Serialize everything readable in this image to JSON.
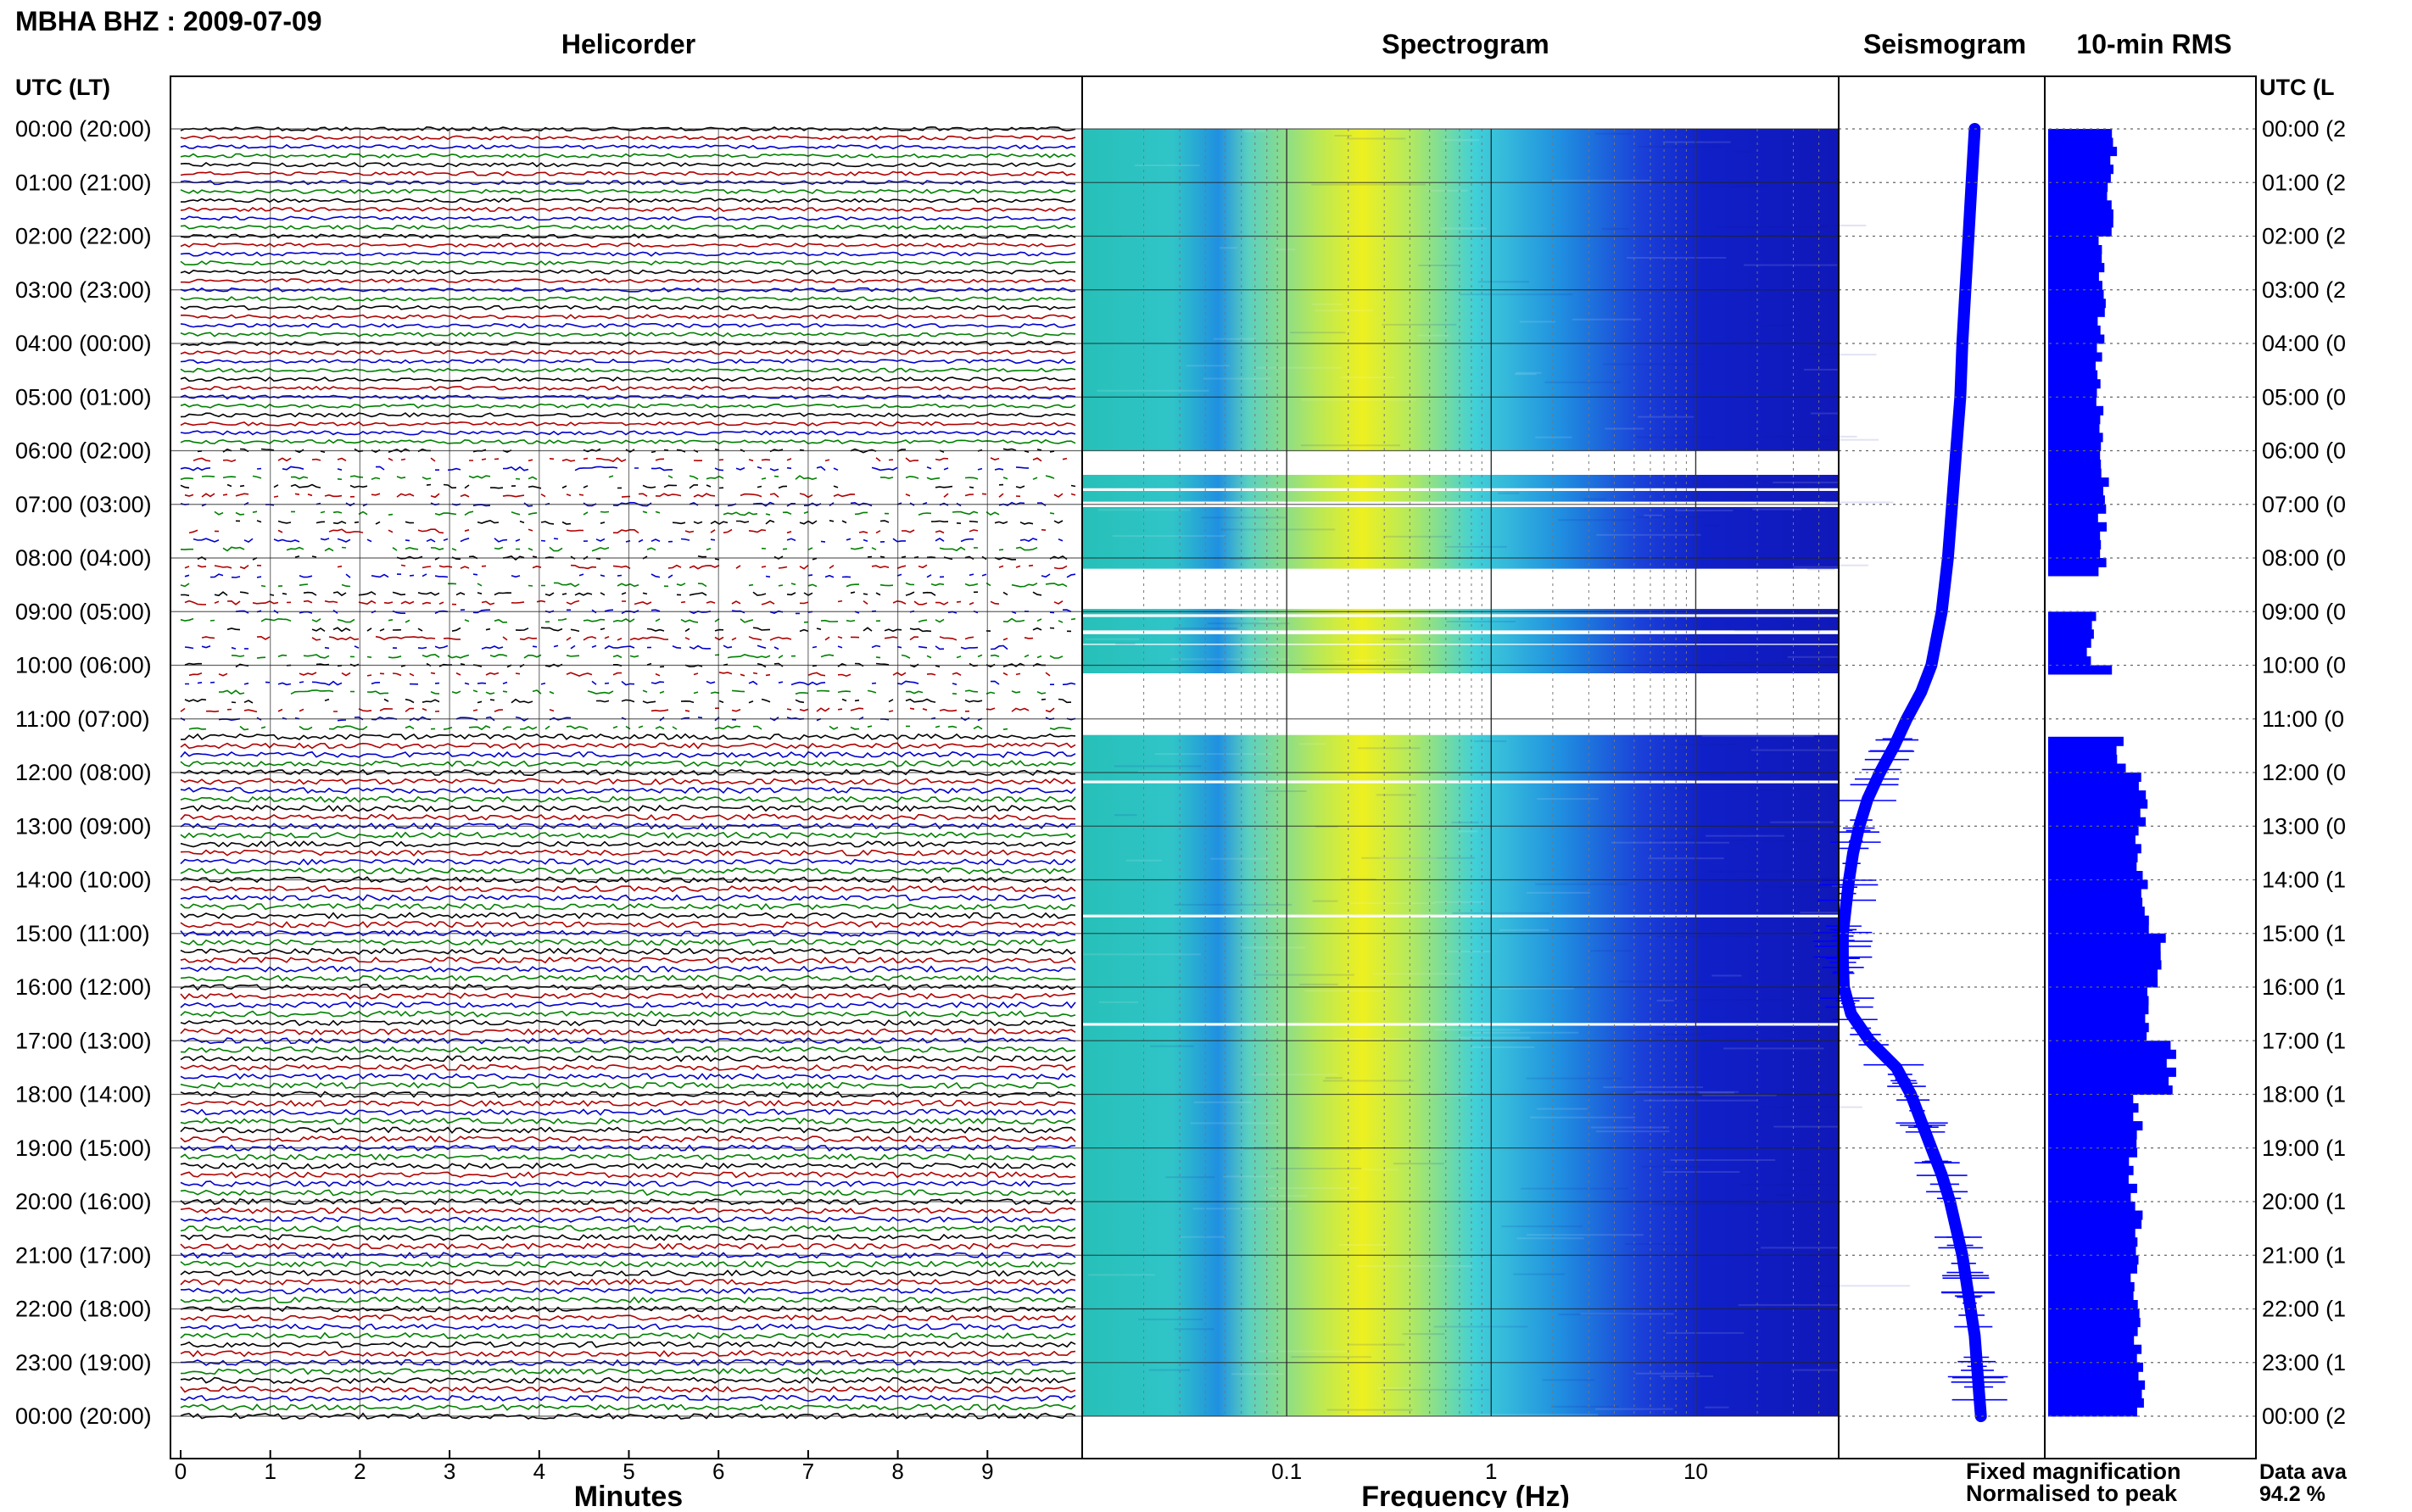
{
  "header": {
    "station_title": "MBHA BHZ : 2009-07-09",
    "helicorder_title": "Helicorder",
    "spectrogram_title": "Spectrogram",
    "seismogram_title": "Seismogram",
    "rms_title": "10-min RMS",
    "left_axis_header": "UTC (LT)",
    "right_axis_header": "UTC (L"
  },
  "footer": {
    "minutes_label": "Minutes",
    "frequency_label": "Frequency (Hz)",
    "legend_fixed": "Fixed magnification",
    "legend_normalised": "Normalised to peak",
    "data_avail_label": "Data ava",
    "data_avail_value": "94.2 %"
  },
  "colors": {
    "trace_colors": [
      "#000000",
      "#b00000",
      "#0000cc",
      "#008000"
    ],
    "spectrogram_low": "#1a1ad0",
    "spectrogram_mid": "#27c8e0",
    "spectrogram_high": "#e8f020",
    "seismogram": "#0000ff",
    "rms": "#0000ff",
    "legend_fixed": "#0000ff",
    "legend_normalised": "#ff0000"
  },
  "chart_data": [
    {
      "type": "line",
      "panel": "helicorder",
      "xlabel": "Minutes",
      "xticks": [
        "0",
        "1",
        "2",
        "3",
        "4",
        "5",
        "6",
        "7",
        "8",
        "9"
      ],
      "xlim": [
        0,
        10
      ],
      "row_labels": [
        "00:00 (20:00)",
        "01:00 (21:00)",
        "02:00 (22:00)",
        "03:00 (23:00)",
        "04:00 (00:00)",
        "05:00 (01:00)",
        "06:00 (02:00)",
        "07:00 (03:00)",
        "08:00 (04:00)",
        "09:00 (05:00)",
        "10:00 (06:00)",
        "11:00 (07:00)",
        "12:00 (08:00)",
        "13:00 (09:00)",
        "14:00 (10:00)",
        "15:00 (11:00)",
        "16:00 (12:00)",
        "17:00 (13:00)",
        "18:00 (14:00)",
        "19:00 (15:00)",
        "20:00 (16:00)",
        "21:00 (17:00)",
        "22:00 (18:00)",
        "23:00 (19:00)",
        "00:00 (20:00)"
      ],
      "right_row_labels": [
        "00:00 (2",
        "01:00 (2",
        "02:00 (2",
        "03:00 (2",
        "04:00 (0",
        "05:00 (0",
        "06:00 (0",
        "07:00 (0",
        "08:00 (0",
        "09:00 (0",
        "10:00 (0",
        "11:00 (0",
        "12:00 (0",
        "13:00 (0",
        "14:00 (1",
        "15:00 (1",
        "16:00 (1",
        "17:00 (1",
        "18:00 (1",
        "19:00 (1",
        "20:00 (1",
        "21:00 (1",
        "22:00 (1",
        "23:00 (1",
        "00:00 (2"
      ],
      "lines_per_hour": 6,
      "gap_hours": [
        [
          6.0,
          11.3
        ]
      ]
    },
    {
      "type": "heatmap",
      "panel": "spectrogram",
      "xlabel": "Frequency (Hz)",
      "xscale": "log",
      "xlim": [
        0.01,
        50
      ],
      "xticks": [
        "0.1",
        "1",
        "10"
      ],
      "ylim_hours": [
        0,
        24
      ],
      "peak_frequency_hz": 0.35,
      "gaps_hours": [
        [
          6.0,
          6.45
        ],
        [
          6.7,
          6.75
        ],
        [
          6.95,
          7.05
        ],
        [
          8.2,
          8.95
        ],
        [
          9.05,
          9.1
        ],
        [
          9.35,
          9.42
        ],
        [
          9.6,
          9.62
        ],
        [
          10.15,
          11.3
        ],
        [
          12.15,
          12.2
        ],
        [
          14.65,
          14.7
        ],
        [
          16.67,
          16.72
        ]
      ]
    },
    {
      "type": "line",
      "panel": "seismogram",
      "x": [
        0.0,
        1.0,
        2.0,
        3.0,
        4.0,
        5.0,
        6.0,
        7.0,
        8.0,
        9.0,
        10.0,
        10.5,
        11.0,
        11.5,
        12.0,
        12.5,
        13.0,
        13.5,
        14.0,
        14.5,
        15.0,
        15.5,
        16.0,
        16.5,
        17.0,
        17.5,
        18.0,
        18.5,
        19.0,
        19.5,
        20.0,
        20.5,
        21.0,
        21.5,
        22.0,
        22.5,
        23.0,
        23.5,
        24.0
      ],
      "values": [
        0.66,
        0.645,
        0.63,
        0.615,
        0.6,
        0.59,
        0.57,
        0.55,
        0.53,
        0.5,
        0.45,
        0.4,
        0.33,
        0.27,
        0.2,
        0.14,
        0.1,
        0.07,
        0.05,
        0.035,
        0.02,
        0.02,
        0.025,
        0.06,
        0.15,
        0.28,
        0.35,
        0.4,
        0.45,
        0.5,
        0.54,
        0.57,
        0.6,
        0.62,
        0.64,
        0.66,
        0.67,
        0.68,
        0.69
      ],
      "xlim": [
        0,
        24
      ],
      "ylim": [
        0,
        1
      ]
    },
    {
      "type": "bar",
      "panel": "rms",
      "x": [
        0,
        1,
        2,
        3,
        4,
        5,
        6,
        7,
        8,
        9,
        10,
        11,
        12,
        13,
        14,
        15,
        16,
        17,
        18,
        19,
        20,
        21,
        22,
        23
      ],
      "values": [
        0.33,
        0.3,
        0.28,
        0.27,
        0.26,
        0.26,
        0.28,
        0.27,
        0.27,
        0.22,
        0.3,
        0.36,
        0.47,
        0.44,
        0.47,
        0.55,
        0.5,
        0.6,
        0.44,
        0.42,
        0.44,
        0.42,
        0.44,
        0.46
      ],
      "xlim": [
        0,
        24
      ],
      "ylim": [
        0,
        1
      ]
    }
  ]
}
